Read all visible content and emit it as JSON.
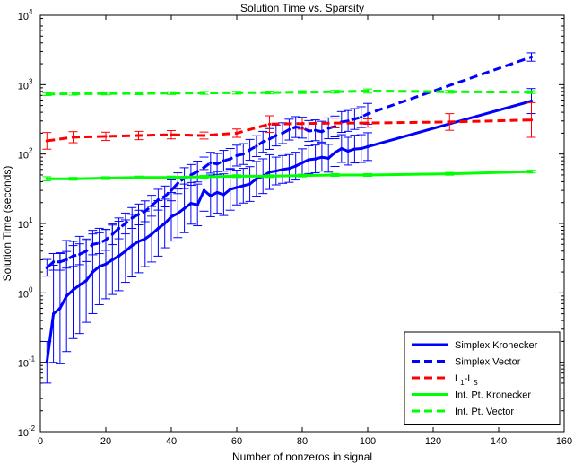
{
  "chart_data": {
    "type": "line",
    "title": "Solution Time vs. Sparsity",
    "xlabel": "Number of nonzeros in signal",
    "ylabel": "Solution Time (seconds)",
    "xlim": [
      0,
      160
    ],
    "ylim": [
      0.01,
      10000
    ],
    "yscale": "log",
    "grid": false,
    "legend_position": "bottom-right",
    "x_ticks": [
      0,
      20,
      40,
      60,
      80,
      100,
      120,
      140,
      160
    ],
    "x_tick_labels": [
      "0",
      "20",
      "40",
      "60",
      "80",
      "100",
      "120",
      "140",
      "160"
    ],
    "y_ticks": [
      0.01,
      0.1,
      1,
      10,
      100,
      1000,
      10000
    ],
    "y_tick_labels": [
      {
        "base": "10",
        "exp": "-2"
      },
      {
        "base": "10",
        "exp": "-1"
      },
      {
        "base": "10",
        "exp": "0"
      },
      {
        "base": "10",
        "exp": "1"
      },
      {
        "base": "10",
        "exp": "2"
      },
      {
        "base": "10",
        "exp": "3"
      },
      {
        "base": "10",
        "exp": "4"
      }
    ],
    "series": [
      {
        "name": "Simplex Kronecker",
        "label_main": "Simplex Kronecker",
        "color": "#0000ff",
        "dash": "solid",
        "width": 3,
        "x": [
          2,
          4,
          6,
          8,
          10,
          12,
          14,
          16,
          18,
          20,
          22,
          24,
          26,
          28,
          30,
          32,
          34,
          36,
          38,
          40,
          42,
          44,
          46,
          48,
          50,
          52,
          54,
          56,
          58,
          60,
          62,
          64,
          66,
          68,
          70,
          72,
          74,
          76,
          78,
          80,
          82,
          84,
          86,
          88,
          90,
          92,
          94,
          96,
          98,
          100,
          150
        ],
        "y": [
          0.1,
          0.5,
          0.6,
          0.9,
          1.1,
          1.3,
          1.5,
          2.0,
          2.4,
          2.6,
          3.0,
          3.4,
          4.0,
          4.8,
          5.5,
          6.0,
          7.0,
          8.5,
          10.0,
          12.5,
          14.0,
          16.5,
          19.5,
          18.5,
          30.0,
          25.0,
          28.0,
          26.0,
          31.0,
          33.0,
          35.0,
          37.0,
          44.0,
          48.0,
          55.0,
          57.0,
          60.0,
          62.0,
          67.0,
          75.0,
          83.0,
          85.0,
          90.0,
          87.0,
          105.0,
          120.0,
          110.0,
          118.0,
          120.0,
          128.0,
          580.0
        ],
        "err": [
          0.3,
          0.7,
          0.8,
          0.8,
          0.7,
          0.7,
          0.6,
          0.6,
          0.55,
          0.5,
          0.5,
          0.5,
          0.45,
          0.45,
          0.45,
          0.4,
          0.4,
          0.4,
          0.35,
          0.35,
          0.35,
          0.35,
          0.3,
          0.3,
          0.3,
          0.3,
          0.3,
          0.3,
          0.3,
          0.25,
          0.25,
          0.25,
          0.25,
          0.25,
          0.25,
          0.2,
          0.2,
          0.2,
          0.2,
          0.2,
          0.2,
          0.2,
          0.2,
          0.2,
          0.2,
          0.2,
          0.2,
          0.2,
          0.2,
          0.2,
          0.18
        ]
      },
      {
        "name": "Simplex Vector",
        "label_main": "Simplex Vector",
        "color": "#0000ff",
        "dash": "dashed",
        "width": 3,
        "x": [
          2,
          4,
          6,
          8,
          10,
          12,
          14,
          16,
          18,
          20,
          22,
          24,
          26,
          28,
          30,
          32,
          34,
          36,
          38,
          40,
          42,
          44,
          46,
          48,
          50,
          52,
          54,
          56,
          58,
          60,
          62,
          64,
          66,
          68,
          70,
          72,
          74,
          76,
          78,
          80,
          82,
          84,
          86,
          88,
          90,
          92,
          94,
          96,
          98,
          100,
          150
        ],
        "y": [
          2.3,
          2.8,
          2.8,
          3.0,
          3.4,
          3.6,
          4.0,
          5.0,
          5.2,
          5.8,
          7.0,
          8.5,
          10.0,
          12.0,
          13.5,
          15.0,
          18.0,
          22.0,
          24.5,
          30.0,
          38.0,
          45.0,
          50.0,
          56.0,
          64.0,
          75.0,
          72.0,
          80.0,
          85.0,
          95.0,
          100.0,
          115.0,
          130.0,
          150.0,
          165.0,
          185.0,
          200.0,
          225.0,
          245.0,
          240.0,
          215.0,
          220.0,
          210.0,
          235.0,
          250.0,
          290.0,
          300.0,
          320.0,
          340.0,
          380.0,
          2500.0
        ],
        "err": [
          0.12,
          0.12,
          0.12,
          0.12,
          0.15,
          0.15,
          0.15,
          0.15,
          0.15,
          0.15,
          0.15,
          0.15,
          0.15,
          0.15,
          0.15,
          0.15,
          0.15,
          0.15,
          0.15,
          0.15,
          0.15,
          0.15,
          0.15,
          0.15,
          0.15,
          0.15,
          0.15,
          0.15,
          0.15,
          0.15,
          0.15,
          0.15,
          0.15,
          0.15,
          0.15,
          0.15,
          0.15,
          0.15,
          0.15,
          0.15,
          0.15,
          0.15,
          0.15,
          0.15,
          0.15,
          0.15,
          0.15,
          0.15,
          0.15,
          0.15,
          0.06
        ]
      },
      {
        "name": "L1-LS",
        "label_main": "L",
        "label_sub1": "1",
        "label_mid": "-L",
        "label_sub2": "S",
        "color": "#ff0000",
        "dash": "dashed",
        "width": 3,
        "x": [
          2,
          10,
          20,
          30,
          40,
          50,
          60,
          70,
          80,
          90,
          100,
          125,
          150
        ],
        "y": [
          155,
          175,
          180,
          185,
          190,
          185,
          200,
          270,
          275,
          280,
          280,
          290,
          310
        ],
        "err": [
          0.12,
          0.08,
          0.06,
          0.06,
          0.06,
          0.05,
          0.06,
          0.12,
          0.08,
          0.07,
          0.06,
          0.12,
          0.25
        ]
      },
      {
        "name": "Int. Pt. Kronecker",
        "label_main": "Int. Pt. Kronecker",
        "color": "#00ff00",
        "dash": "solid",
        "width": 3,
        "x": [
          2,
          10,
          20,
          30,
          40,
          50,
          60,
          70,
          80,
          90,
          100,
          125,
          150
        ],
        "y": [
          44,
          44,
          45,
          46,
          46,
          47,
          48,
          48,
          49,
          50,
          50,
          52,
          56
        ],
        "err": [
          0.03,
          0.02,
          0.02,
          0.02,
          0.02,
          0.02,
          0.02,
          0.02,
          0.02,
          0.02,
          0.02,
          0.02,
          0.02
        ]
      },
      {
        "name": "Int. Pt. Vector",
        "label_main": "Int. Pt. Vector",
        "color": "#00ff00",
        "dash": "dashed",
        "width": 3,
        "x": [
          2,
          10,
          20,
          30,
          40,
          50,
          60,
          70,
          80,
          90,
          100,
          125,
          150
        ],
        "y": [
          730,
          740,
          745,
          750,
          755,
          760,
          765,
          770,
          780,
          790,
          810,
          790,
          780
        ],
        "err": [
          0.02,
          0.02,
          0.02,
          0.02,
          0.02,
          0.02,
          0.02,
          0.02,
          0.02,
          0.02,
          0.03,
          0.02,
          0.02
        ]
      }
    ]
  }
}
